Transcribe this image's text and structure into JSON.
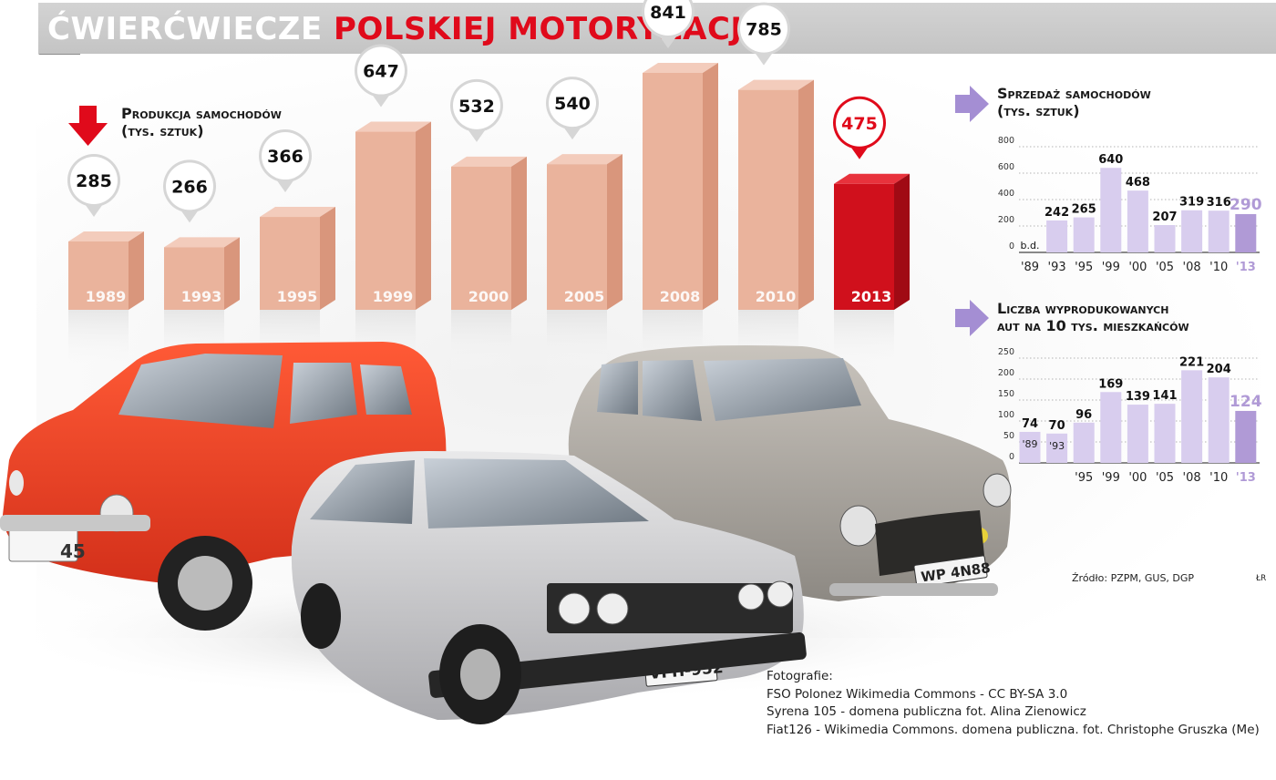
{
  "title": {
    "part1": "ĆWIERĆWIECZE",
    "part2": "POLSKIEJ MOTORYZACJI"
  },
  "colors": {
    "accent_red": "#e00a1b",
    "bar_salmon": "#eab39c",
    "bar_highlight": "#d0101c",
    "bar_lavender": "#d8cdee",
    "bar_lavender_highlight": "#b09ad6",
    "arrow_lavender": "#a48ed3",
    "banner_gray": "#cbcbcb"
  },
  "icons": {
    "production_arrow": "red-down-arrow-icon",
    "sales_arrow": "lavender-right-arrow-icon",
    "density_arrow": "lavender-right-arrow-icon"
  },
  "production": {
    "heading": [
      "Produkcja samochodów",
      "(tys. sztuk)"
    ]
  },
  "sales": {
    "heading": [
      "Sprzedaż samochodów",
      "(tys. sztuk)"
    ]
  },
  "density": {
    "heading": [
      "Liczba wyprodukowanych",
      "aut na 10 tys. mieszkańców"
    ]
  },
  "chart_data": [
    {
      "type": "bar",
      "id": "production",
      "title": "Produkcja samochodów (tys. sztuk)",
      "categories": [
        "1989",
        "1993",
        "1995",
        "1999",
        "2000",
        "2005",
        "2008",
        "2010",
        "2013"
      ],
      "values": [
        285,
        266,
        366,
        647,
        532,
        540,
        841,
        785,
        475
      ],
      "value_labels": [
        "285",
        "266",
        "366",
        "647",
        "532",
        "540",
        "841",
        "785",
        "475"
      ],
      "highlight_index": 8,
      "ylim": [
        0,
        900
      ]
    },
    {
      "type": "bar",
      "id": "sales",
      "title": "Sprzedaż samochodów (tys. sztuk)",
      "categories": [
        "'89",
        "'93",
        "'95",
        "'99",
        "'00",
        "'05",
        "'08",
        "'10",
        "'13"
      ],
      "values": [
        null,
        242,
        265,
        640,
        468,
        207,
        319,
        316,
        290
      ],
      "value_labels": [
        "b.d.",
        "242",
        "265",
        "640",
        "468",
        "207",
        "319",
        "316",
        "290"
      ],
      "highlight_index": 8,
      "ylim": [
        0,
        800
      ],
      "yticks": [
        0,
        200,
        400,
        600,
        800
      ],
      "ytick_labels": [
        "0",
        "200",
        "400",
        "600",
        "800"
      ],
      "grid": true
    },
    {
      "type": "bar",
      "id": "density",
      "title": "Liczba wyprodukowanych aut na 10 tys. mieszkańców",
      "categories": [
        "'89",
        "'93",
        "'95",
        "'99",
        "'00",
        "'05",
        "'08",
        "'10",
        "'13"
      ],
      "values": [
        74,
        70,
        96,
        169,
        139,
        141,
        221,
        204,
        124
      ],
      "value_labels": [
        "74",
        "70",
        "96",
        "169",
        "139",
        "141",
        "221",
        "204",
        "124"
      ],
      "highlight_index": 8,
      "ylim": [
        0,
        250
      ],
      "yticks": [
        0,
        50,
        100,
        150,
        200,
        250
      ],
      "ytick_labels": [
        "0",
        "50",
        "100",
        "150",
        "200",
        "250"
      ],
      "grid": true,
      "inner_category_indices": [
        0,
        1
      ],
      "bottom_category_indices": [
        2,
        3,
        4,
        5,
        6,
        7,
        8
      ]
    }
  ],
  "photos": {
    "fiat126": {
      "icon": "red-fiat-126-car-icon",
      "plate": "45"
    },
    "polonez": {
      "icon": "silver-polonez-car-icon",
      "plate": "VFH-952"
    },
    "syrena": {
      "icon": "gray-syrena-105-car-icon",
      "plate": "WP 4N88"
    }
  },
  "source": "Źródło: PZPM, GUS, DGP",
  "credit": "ŁR",
  "sources": {
    "heading": "Fotografie:",
    "lines": [
      "FSO Polonez Wikimedia Commons - CC BY-SA 3.0",
      "Syrena 105 - domena publiczna fot. Alina Zienowicz",
      "Fiat126 - Wikimedia Commons. domena publiczna. fot. Christophe Gruszka (Me)"
    ]
  }
}
